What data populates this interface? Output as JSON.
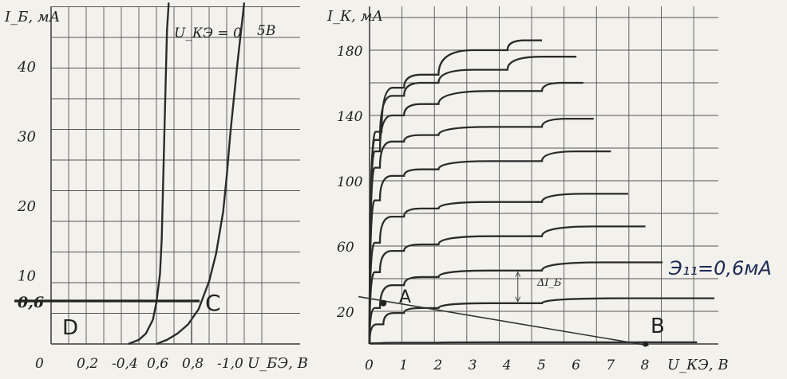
{
  "chart_data": [
    {
      "type": "line",
      "xlabel": "U_БЭ, В",
      "ylabel": "I_Б, мА",
      "xlim": [
        0,
        1.2
      ],
      "ylim": [
        0,
        50
      ],
      "x_ticks": [
        "0",
        "0,2",
        "-0,4",
        "0,6",
        "0,8",
        "-1,0"
      ],
      "y_ticks": [
        "10",
        "20",
        "30",
        "40"
      ],
      "series": [
        {
          "name": "U_КЭ = 0",
          "points": [
            [
              0.44,
              0
            ],
            [
              0.5,
              0.6
            ],
            [
              0.54,
              1.5
            ],
            [
              0.58,
              3.5
            ],
            [
              0.6,
              6
            ],
            [
              0.62,
              10
            ],
            [
              0.63,
              15
            ],
            [
              0.64,
              25
            ],
            [
              0.65,
              35
            ],
            [
              0.66,
              45
            ],
            [
              0.67,
              49
            ]
          ]
        },
        {
          "name": "5В",
          "points": [
            [
              0.6,
              0
            ],
            [
              0.66,
              0.6
            ],
            [
              0.72,
              1.5
            ],
            [
              0.78,
              2.8
            ],
            [
              0.84,
              5
            ],
            [
              0.9,
              9
            ],
            [
              0.94,
              13
            ],
            [
              0.98,
              19
            ],
            [
              1.0,
              24
            ],
            [
              1.02,
              30
            ],
            [
              1.06,
              40
            ],
            [
              1.1,
              49
            ]
          ]
        }
      ],
      "annotations": [
        {
          "text": "0,6",
          "y": 0.6
        },
        {
          "text": "C",
          "x": 0.8,
          "y": 0.6
        },
        {
          "text": "D"
        }
      ]
    },
    {
      "type": "line",
      "xlabel": "U_КЭ, В",
      "ylabel": "I_К, мА",
      "xlim": [
        0,
        9
      ],
      "ylim": [
        0,
        190
      ],
      "x_ticks": [
        "0",
        "1",
        "2",
        "3",
        "4",
        "5",
        "6",
        "7",
        "8"
      ],
      "y_ticks": [
        "20",
        "60",
        "100",
        "140",
        "180"
      ],
      "series": [
        {
          "name": "",
          "points": [
            [
              0,
              0
            ],
            [
              0.3,
              0.5
            ],
            [
              2,
              0.8
            ],
            [
              5,
              1
            ],
            [
              9.5,
              1
            ]
          ]
        },
        {
          "name": "",
          "points": [
            [
              0,
              0
            ],
            [
              0.4,
              12
            ],
            [
              1,
              19
            ],
            [
              2,
              22
            ],
            [
              5,
              25
            ],
            [
              10,
              28
            ]
          ]
        },
        {
          "name": "",
          "points": [
            [
              0,
              0
            ],
            [
              0.3,
              22
            ],
            [
              1,
              36
            ],
            [
              2,
              41
            ],
            [
              5,
              45
            ],
            [
              8.5,
              50
            ]
          ]
        },
        {
          "name": "",
          "points": [
            [
              0,
              0
            ],
            [
              0.3,
              44
            ],
            [
              1,
              57
            ],
            [
              2,
              61
            ],
            [
              5,
              66
            ],
            [
              8,
              72
            ]
          ]
        },
        {
          "name": "",
          "points": [
            [
              0,
              0
            ],
            [
              0.3,
              62
            ],
            [
              1,
              78
            ],
            [
              2,
              83
            ],
            [
              5,
              87
            ],
            [
              7.5,
              92
            ]
          ]
        },
        {
          "name": "",
          "points": [
            [
              0,
              0
            ],
            [
              0.3,
              88
            ],
            [
              1,
              103
            ],
            [
              2,
              107
            ],
            [
              5,
              112
            ],
            [
              7,
              118
            ]
          ]
        },
        {
          "name": "",
          "points": [
            [
              0,
              0
            ],
            [
              0.3,
              108
            ],
            [
              1,
              124
            ],
            [
              2,
              128
            ],
            [
              5,
              133
            ],
            [
              6.5,
              138
            ]
          ]
        },
        {
          "name": "",
          "points": [
            [
              0,
              0
            ],
            [
              0.3,
              118
            ],
            [
              1,
              140
            ],
            [
              2,
              147
            ],
            [
              5,
              155
            ],
            [
              6.2,
              160
            ]
          ]
        },
        {
          "name": "",
          "points": [
            [
              0,
              0
            ],
            [
              0.3,
              125
            ],
            [
              1,
              152
            ],
            [
              2,
              160
            ],
            [
              4,
              168
            ],
            [
              6,
              176
            ]
          ]
        },
        {
          "name": "",
          "points": [
            [
              0,
              0
            ],
            [
              0.35,
              130
            ],
            [
              1,
              157
            ],
            [
              2,
              165
            ],
            [
              4,
              180
            ],
            [
              5,
              186
            ]
          ]
        }
      ],
      "load_line": {
        "points": [
          [
            0,
            28
          ],
          [
            8,
            0
          ]
        ]
      },
      "annotations": [
        {
          "text": "A",
          "x": 0.7,
          "y": 25
        },
        {
          "text": "B",
          "x": 8,
          "y": 5
        },
        {
          "text": "ΔI_Б",
          "x": 4.3,
          "y": 38
        },
        {
          "text": "Э₁₁=0,6мА",
          "x": 8.6,
          "y": 50
        }
      ]
    }
  ]
}
